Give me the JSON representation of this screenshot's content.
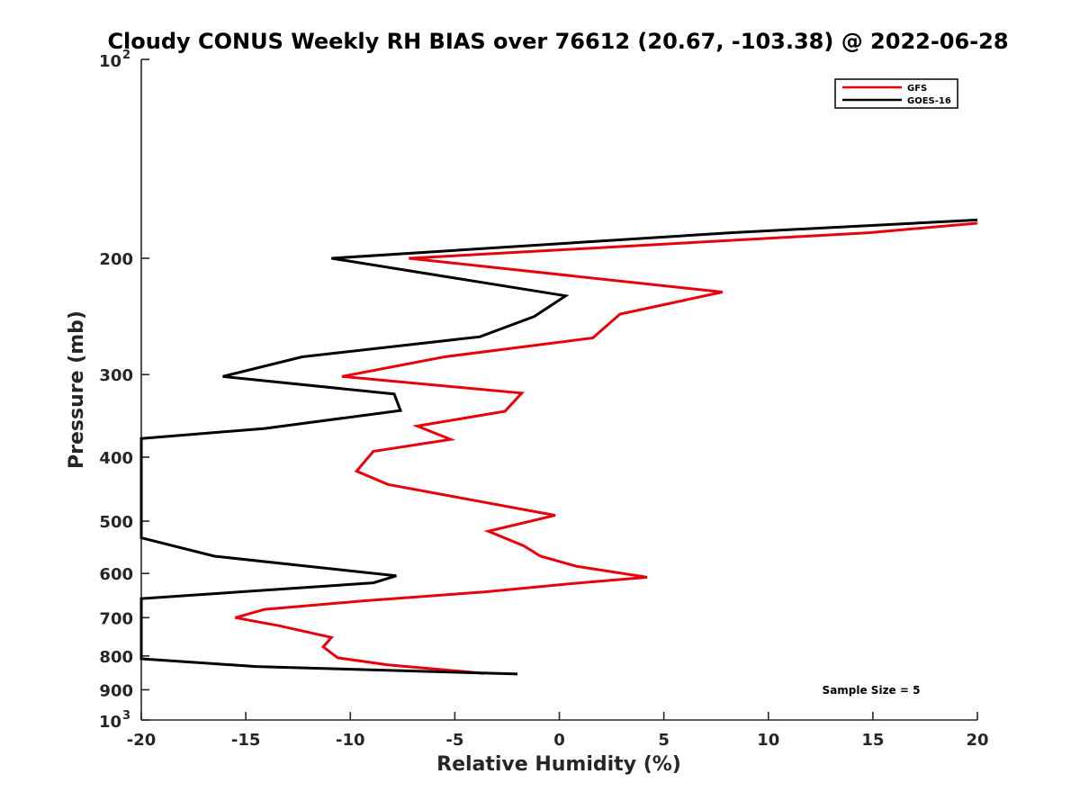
{
  "chart_data": {
    "type": "line",
    "title": "Cloudy CONUS Weekly RH BIAS over 76612 (20.67, -103.38) @ 2022-06-28",
    "xlabel": "Relative Humidity (%)",
    "ylabel": "Pressure (mb)",
    "xlim": [
      -20,
      20
    ],
    "ylim": [
      100,
      1000
    ],
    "yscale": "log",
    "yreversed": true,
    "xticks": [
      -20,
      -15,
      -10,
      -5,
      0,
      5,
      10,
      15,
      20
    ],
    "xtick_labels": [
      "-20",
      "-15",
      "-10",
      "-5",
      "0",
      "5",
      "10",
      "15",
      "20"
    ],
    "yticks": [
      200,
      300,
      400,
      500,
      600,
      700,
      800,
      900
    ],
    "ytick_labels": [
      "200",
      "300",
      "400",
      "500",
      "600",
      "700",
      "800",
      "900"
    ],
    "ytick_edge_labels": [
      {
        "value": 100,
        "base": "10",
        "exp": "2"
      },
      {
        "value": 1000,
        "base": "10",
        "exp": "3"
      }
    ],
    "legend_location": "top-right",
    "annotation": "Sample Size = 5",
    "series": [
      {
        "name": "GFS",
        "color": "#e8000b",
        "x": [
          20,
          14.8,
          -7.2,
          7.8,
          2.9,
          1.6,
          -5.5,
          -10.4,
          -1.8,
          -2.6,
          -6.8,
          -5.2,
          -8.9,
          -9.7,
          -8.2,
          -0.2,
          -3.4,
          -1.7,
          -0.9,
          0.8,
          4.2,
          1.0,
          -3.6,
          -9.3,
          -14.1,
          -15.5,
          -13.4,
          -10.9,
          -11.3,
          -10.6,
          -8.2,
          -3.6
        ],
        "y": [
          177,
          183,
          200,
          225,
          243,
          264,
          282,
          302,
          320,
          341,
          359,
          376,
          392,
          420,
          440,
          490,
          518,
          545,
          565,
          585,
          608,
          620,
          640,
          660,
          680,
          700,
          720,
          750,
          775,
          805,
          825,
          850
        ]
      },
      {
        "name": "GOES-16",
        "color": "#000000",
        "x": [
          20,
          8.2,
          -10.9,
          0.3,
          -1.2,
          -3.8,
          -12.3,
          -16.1,
          -7.9,
          -7.6,
          -14.1,
          -20,
          -20,
          -16.5,
          -7.8,
          -8.9,
          -20,
          -20,
          -14.5,
          -2.0
        ],
        "y": [
          175,
          183,
          200,
          228,
          245,
          263,
          282,
          302,
          321,
          340,
          362,
          375,
          530,
          565,
          605,
          620,
          655,
          808,
          830,
          852
        ]
      }
    ]
  }
}
